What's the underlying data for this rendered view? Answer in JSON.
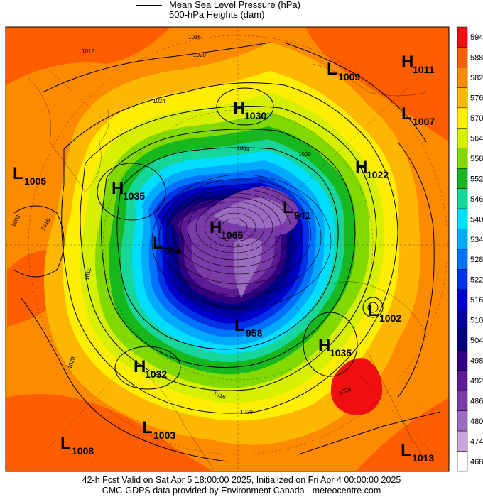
{
  "header": {
    "line1": "Mean Sea Level Pressure (hPa)",
    "line2": "500-hPa Heights (dam)"
  },
  "footer": {
    "line1": "42-h Fcst Valid on Sat Apr  5 18:00:00 2025, Initialized on Fri Apr  4 00:00:00 2025",
    "line2": "CMC-GDPS data provided by Environment Canada - meteocentre.com"
  },
  "colorbar": [
    {
      "value": "594",
      "color": "#f20f0f"
    },
    {
      "value": "588",
      "color": "#fe5d00"
    },
    {
      "value": "582",
      "color": "#fe8a00"
    },
    {
      "value": "576",
      "color": "#ffb600"
    },
    {
      "value": "570",
      "color": "#ffee00"
    },
    {
      "value": "564",
      "color": "#d6f000"
    },
    {
      "value": "558",
      "color": "#82d900"
    },
    {
      "value": "552",
      "color": "#17b81d"
    },
    {
      "value": "546",
      "color": "#17d69a"
    },
    {
      "value": "540",
      "color": "#00ddff"
    },
    {
      "value": "534",
      "color": "#00aaff"
    },
    {
      "value": "528",
      "color": "#0072ff"
    },
    {
      "value": "522",
      "color": "#0033e6"
    },
    {
      "value": "516",
      "color": "#0000cc"
    },
    {
      "value": "510",
      "color": "#0000a0"
    },
    {
      "value": "504",
      "color": "#000080"
    },
    {
      "value": "498",
      "color": "#300080"
    },
    {
      "value": "492",
      "color": "#5c1a95"
    },
    {
      "value": "486",
      "color": "#7a3aa8"
    },
    {
      "value": "480",
      "color": "#9c6cc2"
    },
    {
      "value": "474",
      "color": "#c6a6dc"
    },
    {
      "value": "468",
      "color": "#ffffff"
    }
  ],
  "systems": [
    {
      "type": "L",
      "value": "1009"
    },
    {
      "type": "H",
      "value": "1011"
    },
    {
      "type": "H",
      "value": "1030"
    },
    {
      "type": "L",
      "value": "1007"
    },
    {
      "type": "L",
      "value": "1005"
    },
    {
      "type": "H",
      "value": "1022"
    },
    {
      "type": "H",
      "value": "1035"
    },
    {
      "type": "L",
      "value": "941"
    },
    {
      "type": "H",
      "value": "1065"
    },
    {
      "type": "L",
      "value": "954"
    },
    {
      "type": "L",
      "value": "1002"
    },
    {
      "type": "L",
      "value": "958"
    },
    {
      "type": "H",
      "value": "1035"
    },
    {
      "type": "H",
      "value": "1032"
    },
    {
      "type": "L",
      "value": "1003"
    },
    {
      "type": "L",
      "value": "1008"
    },
    {
      "type": "L",
      "value": "1013"
    }
  ],
  "isobar_labels": [
    "1016",
    "1020",
    "1024",
    "1012",
    "1008",
    "1016",
    "1004",
    "1000",
    "1028",
    "1024",
    "1020",
    "1016",
    "1012"
  ]
}
